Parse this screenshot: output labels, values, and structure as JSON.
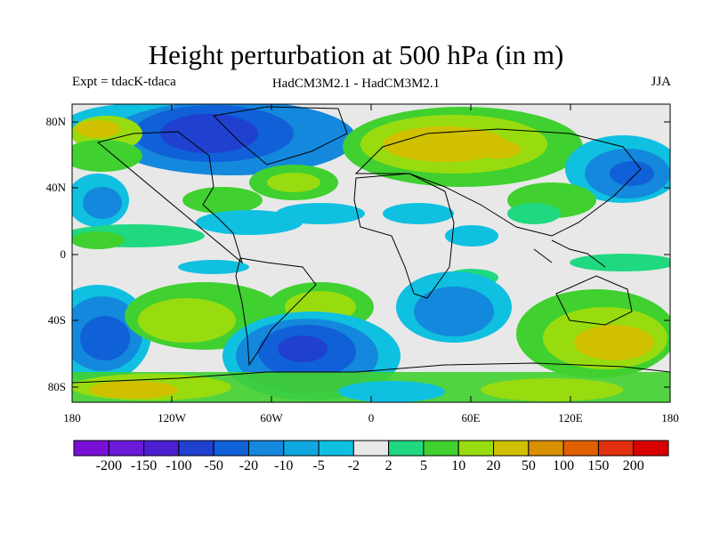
{
  "header": {
    "title": "Height perturbation at 500 hPa (in m)",
    "left_label": "Expt = tdacK-tdaca",
    "center_label": "HadCM3M2.1 - HadCM3M2.1",
    "right_label": "JJA"
  },
  "map": {
    "lon_ticks": [
      "180",
      "120W",
      "60W",
      "0",
      "60E",
      "120E",
      "180"
    ],
    "lat_ticks": [
      "80N",
      "40N",
      "0",
      "40S",
      "80S"
    ],
    "background_color": "#e8e8e8"
  },
  "colorbar": {
    "labels": [
      "-200",
      "-150",
      "-100",
      "-50",
      "-20",
      "-10",
      "-5",
      "-2",
      "2",
      "5",
      "10",
      "20",
      "50",
      "100",
      "150",
      "200"
    ],
    "colors": [
      "#7a10d8",
      "#6a1ad8",
      "#4a20d0",
      "#2040d0",
      "#1060d8",
      "#1488dc",
      "#10a8e0",
      "#10c0e0",
      "#e8e8e8",
      "#20d880",
      "#40d030",
      "#98dc10",
      "#d0c000",
      "#d89000",
      "#e06000",
      "#e03010",
      "#d80000"
    ]
  }
}
